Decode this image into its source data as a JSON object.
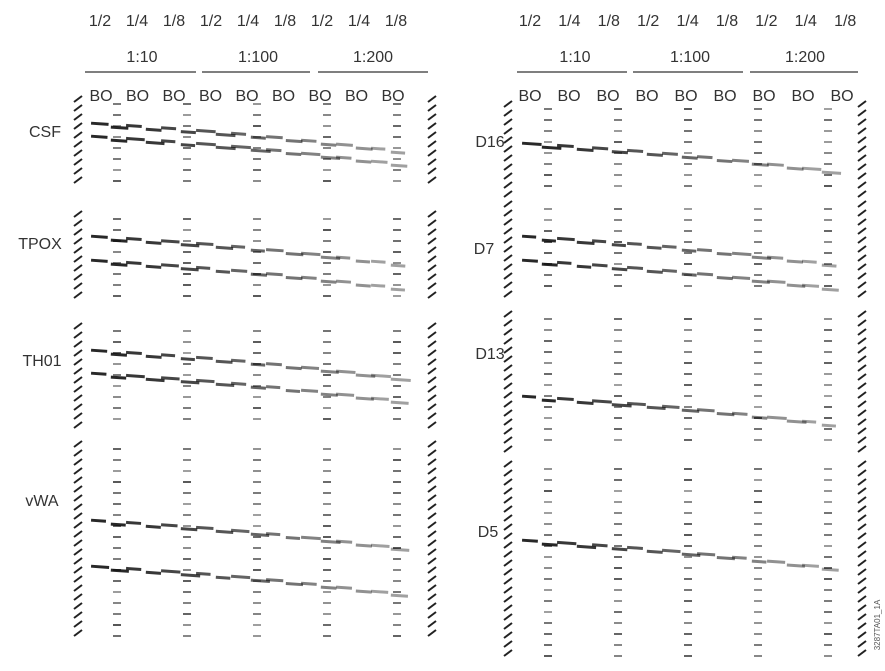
{
  "left": {
    "fractions": [
      "1/2",
      "1/4",
      "1/8",
      "1/2",
      "1/4",
      "1/8",
      "1/2",
      "1/4",
      "1/8"
    ],
    "dilutions": [
      "1:10",
      "1:100",
      "1:200"
    ],
    "lanes": [
      "BO",
      "BO",
      "BO",
      "BO",
      "BO",
      "BO",
      "BO",
      "BO",
      "BO"
    ],
    "loci": [
      "CSF",
      "TPOX",
      "TH01",
      "vWA"
    ]
  },
  "right": {
    "fractions": [
      "1/2",
      "1/4",
      "1/8",
      "1/2",
      "1/4",
      "1/8",
      "1/2",
      "1/4",
      "1/8"
    ],
    "dilutions": [
      "1:10",
      "1:100",
      "1:200"
    ],
    "lanes": [
      "BO",
      "BO",
      "BO",
      "BO",
      "BO",
      "BO",
      "BO",
      "BO",
      "BO"
    ],
    "loci": [
      "D16",
      "D7",
      "D13",
      "D5"
    ]
  },
  "figure_code": "3287TA01_1A"
}
